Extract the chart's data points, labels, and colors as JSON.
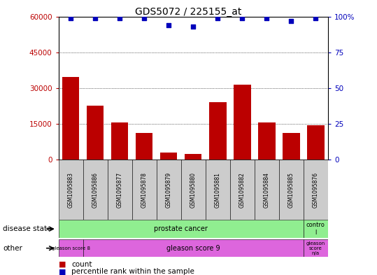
{
  "title": "GDS5072 / 225155_at",
  "samples": [
    "GSM1095883",
    "GSM1095886",
    "GSM1095877",
    "GSM1095878",
    "GSM1095879",
    "GSM1095880",
    "GSM1095881",
    "GSM1095882",
    "GSM1095884",
    "GSM1095885",
    "GSM1095876"
  ],
  "counts": [
    34500,
    22500,
    15500,
    11000,
    2800,
    2200,
    24000,
    31500,
    15500,
    11000,
    14500
  ],
  "percentiles": [
    99,
    99,
    99,
    99,
    94,
    93,
    99,
    99,
    99,
    97,
    99
  ],
  "ylim_left": [
    0,
    60000
  ],
  "ylim_right": [
    0,
    100
  ],
  "yticks_left": [
    0,
    15000,
    30000,
    45000,
    60000
  ],
  "yticks_right": [
    0,
    25,
    50,
    75,
    100
  ],
  "bar_color": "#bb0000",
  "dot_color": "#0000bb",
  "green_color": "#90ee90",
  "magenta_color": "#dd66dd",
  "gray_color": "#cccccc",
  "legend_count_color": "#bb0000",
  "legend_pct_color": "#0000bb"
}
